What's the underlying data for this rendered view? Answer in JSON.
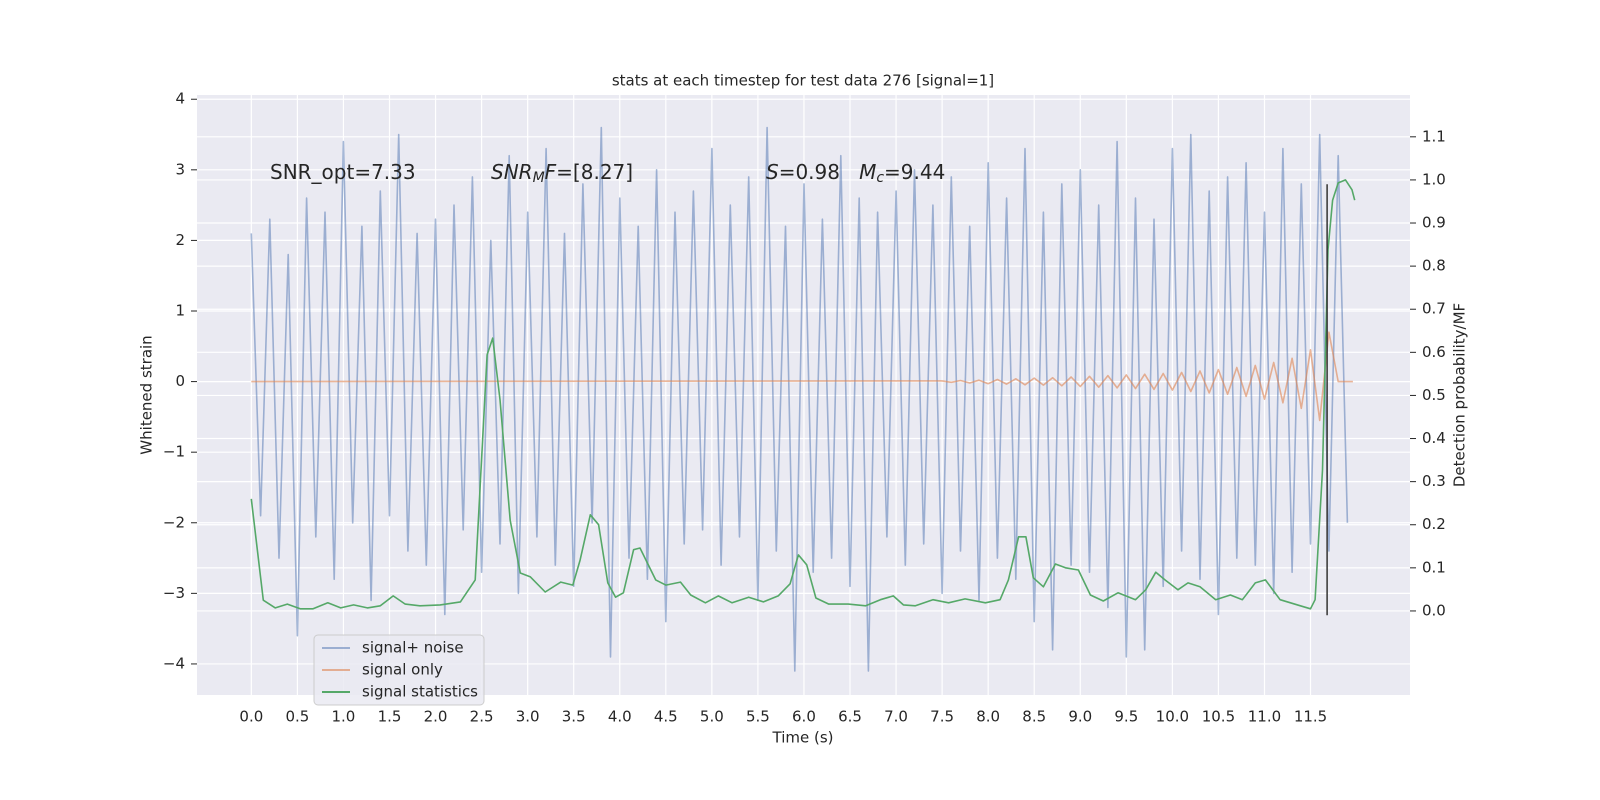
{
  "chart_data": {
    "type": "line",
    "title": "stats at each timestep for test data 276 [signal=1]",
    "xlabel": "Time (s)",
    "ylabel": "Whitened strain",
    "y2label": "Detection probability/MF",
    "annotations": [
      [
        {
          "text": "SNR_opt=7.33"
        }
      ],
      [
        {
          "text": "SNR",
          "italic": true
        },
        {
          "text": "M",
          "italic": true,
          "sub": true
        },
        {
          "text": "F",
          "italic": true
        },
        {
          "text": "=[8.27]"
        }
      ],
      [
        {
          "text": "S",
          "italic": true
        },
        {
          "text": "=0.98   "
        },
        {
          "text": "M",
          "italic": true
        },
        {
          "text": "c",
          "italic": true,
          "sub": true
        },
        {
          "text": "=9.44"
        }
      ]
    ],
    "xlim": [
      -0.59,
      12.58
    ],
    "ylim": [
      -4.44,
      4.06
    ],
    "y2lim": [
      -0.195,
      1.197
    ],
    "xticks": [
      {
        "value": 0,
        "label": "0.0"
      },
      0.5,
      {
        "value": 1,
        "label": "1.0"
      },
      1.5,
      {
        "value": 2,
        "label": "2.0"
      },
      2.5,
      {
        "value": 3,
        "label": "3.0"
      },
      3.5,
      {
        "value": 4,
        "label": "4.0"
      },
      4.5,
      {
        "value": 5,
        "label": "5.0"
      },
      5.5,
      {
        "value": 6,
        "label": "6.0"
      },
      6.5,
      {
        "value": 7,
        "label": "7.0"
      },
      7.5,
      {
        "value": 8,
        "label": "8.0"
      },
      8.5,
      {
        "value": 9,
        "label": "9.0"
      },
      9.5,
      {
        "value": 10,
        "label": "10.0"
      },
      10.5,
      {
        "value": 11,
        "label": "11.0"
      },
      11.5
    ],
    "yticks": [
      {
        "value": -4,
        "label": "−4"
      },
      {
        "value": -3,
        "label": "−3"
      },
      {
        "value": -2,
        "label": "−2"
      },
      {
        "value": -1,
        "label": "−1"
      },
      0,
      1,
      2,
      3,
      4
    ],
    "y2ticks": [
      {
        "value": 0,
        "label": "0.0"
      },
      0.1,
      0.2,
      0.3,
      0.4,
      0.5,
      0.6,
      0.7,
      0.8,
      0.9,
      {
        "value": 1,
        "label": "1.0"
      },
      1.1
    ],
    "grid": true,
    "legend": "lower left",
    "vline_x": 11.68,
    "vline_y2": [
      -0.01,
      0.99
    ],
    "series": [
      {
        "name": "signal+ noise",
        "color": "#4c72b0",
        "opacity": 0.5,
        "x": [
          0.0,
          0.1,
          0.2,
          0.3,
          0.4,
          0.5,
          0.6,
          0.7,
          0.8,
          0.9,
          1.0,
          1.1,
          1.2,
          1.3,
          1.4,
          1.5,
          1.6,
          1.7,
          1.8,
          1.9,
          2.0,
          2.1,
          2.2,
          2.3,
          2.4,
          2.5,
          2.6,
          2.7,
          2.8,
          2.9,
          3.0,
          3.1,
          3.2,
          3.3,
          3.4,
          3.5,
          3.6,
          3.7,
          3.8,
          3.9,
          4.0,
          4.1,
          4.2,
          4.3,
          4.4,
          4.5,
          4.6,
          4.7,
          4.8,
          4.9,
          5.0,
          5.1,
          5.2,
          5.3,
          5.4,
          5.5,
          5.6,
          5.7,
          5.8,
          5.9,
          6.0,
          6.1,
          6.2,
          6.3,
          6.4,
          6.5,
          6.6,
          6.7,
          6.8,
          6.9,
          7.0,
          7.1,
          7.2,
          7.3,
          7.4,
          7.5,
          7.6,
          7.7,
          7.8,
          7.9,
          8.0,
          8.1,
          8.2,
          8.3,
          8.4,
          8.5,
          8.6,
          8.7,
          8.8,
          8.9,
          9.0,
          9.1,
          9.2,
          9.3,
          9.4,
          9.5,
          9.6,
          9.7,
          9.8,
          9.9,
          10.0,
          10.1,
          10.2,
          10.3,
          10.4,
          10.5,
          10.6,
          10.7,
          10.8,
          10.9,
          11.0,
          11.1,
          11.2,
          11.3,
          11.4,
          11.5,
          11.6,
          11.7,
          11.8,
          11.9
        ],
        "values": [
          2.1,
          -1.9,
          2.3,
          -2.5,
          1.8,
          -3.6,
          2.6,
          -2.2,
          2.4,
          -2.8,
          3.4,
          -2.0,
          2.2,
          -3.1,
          2.7,
          -1.9,
          3.5,
          -2.4,
          2.1,
          -2.6,
          2.3,
          -3.3,
          2.5,
          -2.1,
          2.9,
          -2.7,
          2.0,
          -2.3,
          3.2,
          -3.0,
          2.4,
          -2.2,
          3.3,
          -2.6,
          2.1,
          -2.9,
          2.8,
          -2.0,
          3.6,
          -3.9,
          2.6,
          -2.5,
          2.2,
          -2.8,
          3.0,
          -3.4,
          2.4,
          -2.3,
          2.7,
          -2.1,
          3.3,
          -2.6,
          2.5,
          -2.2,
          2.9,
          -3.1,
          3.6,
          -2.4,
          2.2,
          -4.1,
          2.8,
          -2.7,
          2.3,
          -2.5,
          3.2,
          -2.9,
          2.6,
          -4.1,
          2.4,
          -2.2,
          2.7,
          -2.6,
          3.0,
          -2.3,
          2.5,
          -3.0,
          2.9,
          -2.4,
          2.2,
          -3.1,
          3.1,
          -2.5,
          2.6,
          -2.8,
          3.3,
          -3.4,
          2.4,
          -3.8,
          2.8,
          -2.6,
          3.0,
          -2.7,
          2.5,
          -3.2,
          3.4,
          -3.9,
          2.6,
          -3.8,
          2.3,
          -2.9,
          3.3,
          -2.4,
          3.5,
          -2.8,
          2.7,
          -3.3,
          2.9,
          -2.5,
          3.1,
          -2.6,
          2.4,
          -3.0,
          3.3,
          -2.7,
          2.8,
          -2.3,
          3.5,
          -2.4,
          3.2,
          -2.0
        ]
      },
      {
        "name": "signal only",
        "color": "#dd8452",
        "opacity": 0.6,
        "x": [
          0,
          7.5,
          7.6,
          7.7,
          7.8,
          7.9,
          8.0,
          8.1,
          8.2,
          8.3,
          8.4,
          8.5,
          8.6,
          8.7,
          8.8,
          8.9,
          9.0,
          9.1,
          9.2,
          9.3,
          9.4,
          9.5,
          9.6,
          9.7,
          9.8,
          9.9,
          10.0,
          10.1,
          10.2,
          10.3,
          10.4,
          10.5,
          10.6,
          10.7,
          10.8,
          10.9,
          11.0,
          11.1,
          11.2,
          11.3,
          11.4,
          11.5,
          11.6,
          11.7,
          11.8,
          11.96
        ],
        "values": [
          0,
          0.01,
          -0.01,
          0.015,
          -0.02,
          0.02,
          -0.03,
          0.03,
          -0.035,
          0.04,
          -0.045,
          0.05,
          -0.05,
          0.055,
          -0.06,
          0.065,
          -0.07,
          0.075,
          -0.08,
          0.085,
          -0.09,
          0.095,
          -0.1,
          0.105,
          -0.11,
          0.115,
          -0.12,
          0.13,
          -0.14,
          0.15,
          -0.16,
          0.17,
          -0.18,
          0.2,
          -0.21,
          0.23,
          -0.25,
          0.27,
          -0.3,
          0.33,
          -0.38,
          0.45,
          -0.55,
          0.7,
          0,
          0
        ]
      },
      {
        "name": "signal statistics",
        "color": "#55a868",
        "opacity": 1,
        "axis": "y2",
        "x": [
          0.0,
          0.13,
          0.26,
          0.39,
          0.53,
          0.67,
          0.83,
          0.97,
          1.11,
          1.26,
          1.4,
          1.54,
          1.67,
          1.83,
          2.05,
          2.27,
          2.43,
          2.56,
          2.62,
          2.7,
          2.81,
          2.92,
          3.03,
          3.19,
          3.36,
          3.49,
          3.57,
          3.68,
          3.77,
          3.87,
          3.955,
          4.04,
          4.15,
          4.22,
          4.39,
          4.5,
          4.66,
          4.77,
          4.93,
          5.07,
          5.22,
          5.4,
          5.56,
          5.72,
          5.85,
          5.94,
          6.03,
          6.13,
          6.27,
          6.48,
          6.67,
          6.83,
          6.97,
          7.08,
          7.21,
          7.4,
          7.57,
          7.75,
          7.97,
          8.13,
          8.22,
          8.33,
          8.41,
          8.49,
          8.6,
          8.73,
          8.84,
          8.98,
          9.11,
          9.25,
          9.41,
          9.6,
          9.71,
          9.82,
          9.92,
          10.06,
          10.17,
          10.3,
          10.47,
          10.63,
          10.76,
          10.9,
          11.01,
          11.17,
          11.39,
          11.5,
          11.55,
          11.63,
          11.69,
          11.74,
          11.8,
          11.88,
          11.95,
          11.98
        ],
        "values": [
          0.26,
          0.025,
          0.007,
          0.016,
          0.005,
          0.005,
          0.019,
          0.007,
          0.014,
          0.007,
          0.012,
          0.035,
          0.016,
          0.012,
          0.014,
          0.021,
          0.072,
          0.594,
          0.633,
          0.49,
          0.21,
          0.088,
          0.079,
          0.044,
          0.067,
          0.06,
          0.118,
          0.223,
          0.2,
          0.065,
          0.032,
          0.042,
          0.142,
          0.146,
          0.072,
          0.06,
          0.067,
          0.037,
          0.019,
          0.035,
          0.019,
          0.032,
          0.021,
          0.035,
          0.063,
          0.13,
          0.107,
          0.03,
          0.016,
          0.016,
          0.012,
          0.026,
          0.035,
          0.014,
          0.012,
          0.026,
          0.019,
          0.028,
          0.019,
          0.026,
          0.072,
          0.172,
          0.172,
          0.077,
          0.056,
          0.109,
          0.1,
          0.095,
          0.037,
          0.023,
          0.042,
          0.026,
          0.049,
          0.09,
          0.072,
          0.049,
          0.065,
          0.056,
          0.026,
          0.037,
          0.026,
          0.065,
          0.072,
          0.026,
          0.012,
          0.005,
          0.026,
          0.327,
          0.838,
          0.953,
          0.993,
          1.0,
          0.977,
          0.953
        ]
      }
    ]
  }
}
